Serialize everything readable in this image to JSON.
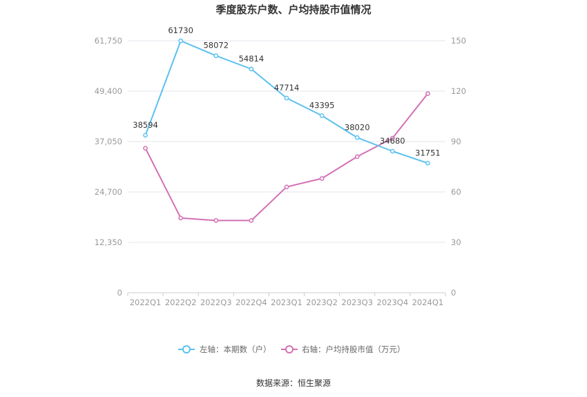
{
  "chart_data": {
    "type": "line",
    "title": "季度股东户数、户均持股市值情况",
    "categories": [
      "2022Q1",
      "2022Q2",
      "2022Q3",
      "2022Q4",
      "2023Q1",
      "2023Q2",
      "2023Q3",
      "2023Q4",
      "2024Q1"
    ],
    "left_axis": {
      "ylim": [
        0,
        61750
      ],
      "ticks": [
        "0",
        "12,350",
        "24,700",
        "37,050",
        "49,400",
        "61,750"
      ]
    },
    "right_axis": {
      "ylim": [
        0,
        150
      ],
      "ticks": [
        "0",
        "30",
        "60",
        "90",
        "120",
        "150"
      ]
    },
    "series": [
      {
        "name": "左轴：本期数（户）",
        "axis": "left",
        "color": "#5bc0f0",
        "values": [
          38594,
          61730,
          58072,
          54814,
          47714,
          43395,
          38020,
          34680,
          31751
        ],
        "labels": [
          "38594",
          "61730",
          "58072",
          "54814",
          "47714",
          "43395",
          "38020",
          "34680",
          "31751"
        ]
      },
      {
        "name": "右轴：户均持股市值（万元）",
        "axis": "right",
        "color": "#d36fb4",
        "values": [
          86,
          44.5,
          43,
          43,
          63,
          68,
          81,
          92,
          118.5
        ]
      }
    ],
    "grid": true,
    "legend_position": "bottom"
  },
  "footer": {
    "source": "数据来源：恒生聚源"
  }
}
